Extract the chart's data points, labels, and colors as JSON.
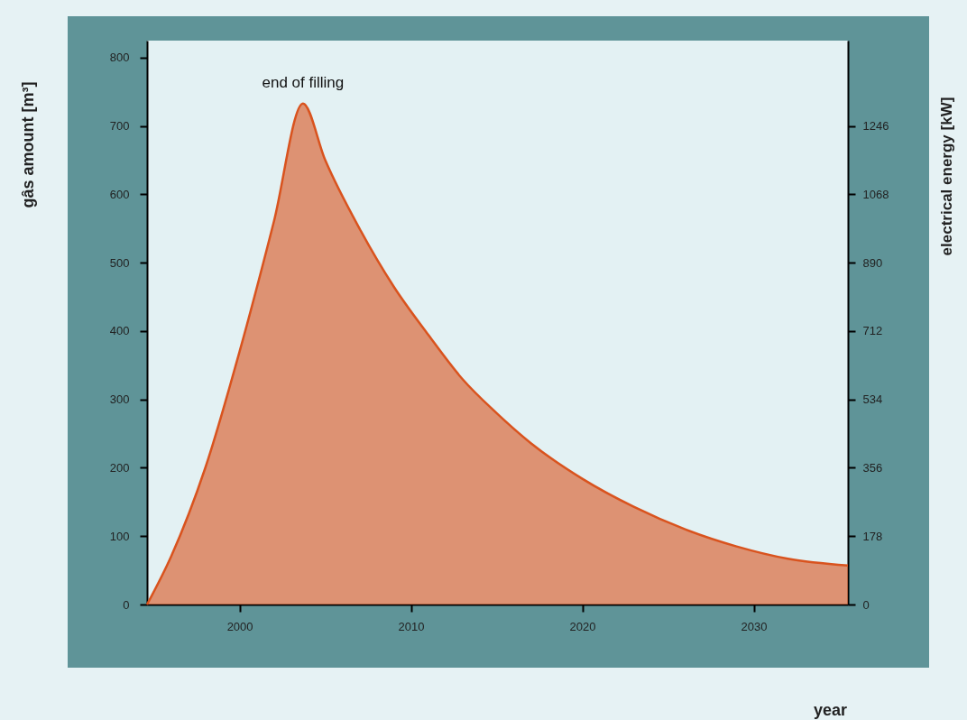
{
  "chart_data": {
    "type": "area",
    "xlabel": "year",
    "ylabel": "gâs amount [m³]",
    "y2label": "electrical energy [kW]",
    "annotations": [
      {
        "text": "end of filling",
        "x": 2003.7,
        "y": 733
      }
    ],
    "x": [
      1994.6,
      1996,
      1998,
      2000,
      2002,
      2003.7,
      2005,
      2007,
      2009,
      2011,
      2013,
      2015,
      2017,
      2020,
      2023,
      2026,
      2029,
      2032,
      2035.5
    ],
    "series": [
      {
        "color": "#d9531e",
        "values": [
          0,
          70,
          200,
          370,
          560,
          733,
          650,
          550,
          465,
          395,
          330,
          280,
          236,
          184,
          143,
          110,
          85,
          67,
          57
        ]
      }
    ],
    "xlim": [
      1994.6,
      2035.5
    ],
    "xticks": [
      2000,
      2010,
      2020,
      2030
    ],
    "ylim": [
      0,
      825
    ],
    "yticks": [
      0,
      100,
      200,
      300,
      400,
      500,
      600,
      700,
      800
    ],
    "y2lim": [
      0,
      1468
    ],
    "y2ticks": [
      0,
      178,
      356,
      534,
      712,
      890,
      1068,
      1246
    ]
  }
}
